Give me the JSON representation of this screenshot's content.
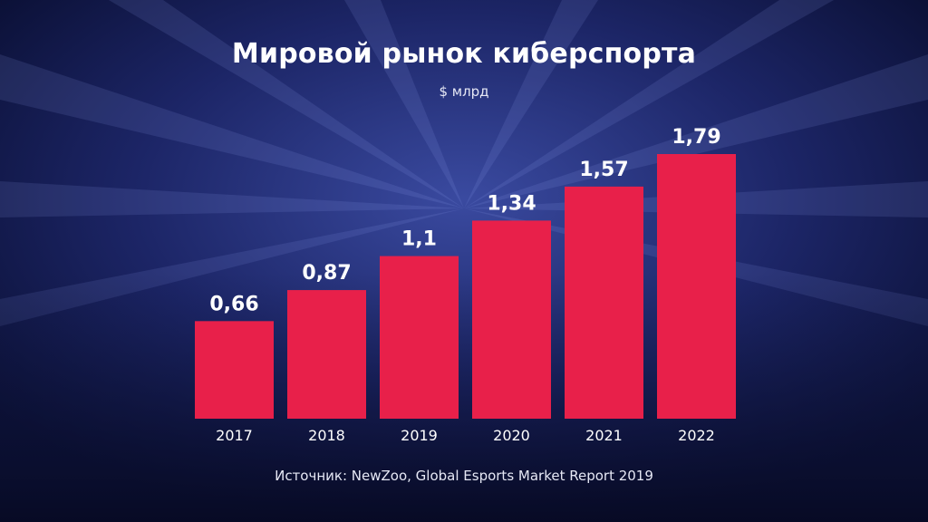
{
  "chart_data": {
    "type": "bar",
    "title": "Мировой рынок киберспорта",
    "subtitle": "$ млрд",
    "categories": [
      "2017",
      "2018",
      "2019",
      "2020",
      "2021",
      "2022"
    ],
    "values": [
      0.66,
      0.87,
      1.1,
      1.34,
      1.57,
      1.79
    ],
    "value_labels": [
      "0,66",
      "0,87",
      "1,1",
      "1,34",
      "1,57",
      "1,79"
    ],
    "bar_color": "#e8204a",
    "ylim": [
      0,
      2
    ],
    "grid": false,
    "legend": "none"
  },
  "source": "Источник: NewZoo, Global Esports Market Report 2019"
}
